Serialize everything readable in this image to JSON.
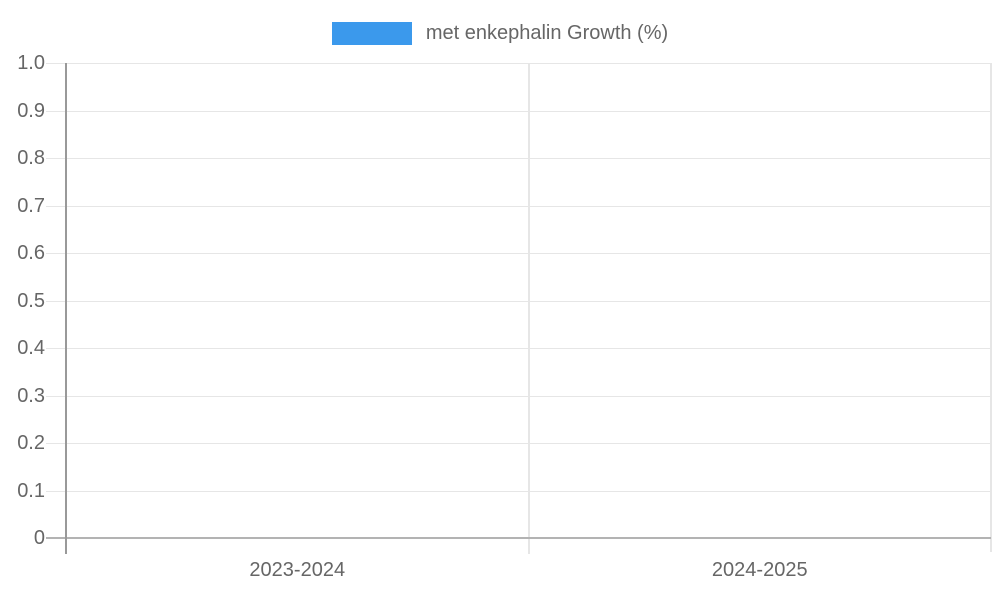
{
  "chart_data": {
    "type": "bar",
    "title": "",
    "legend_position": "top",
    "categories": [
      "2023-2024",
      "2024-2025"
    ],
    "series": [
      {
        "name": "met enkephalin Growth (%)",
        "color": "#3b99ec",
        "values": [
          0,
          0
        ]
      }
    ],
    "ylim": [
      0,
      1
    ],
    "ytick_labels": [
      "1.0",
      "0.9",
      "0.8",
      "0.7",
      "0.6",
      "0.5",
      "0.4",
      "0.3",
      "0.2",
      "0.1",
      "0"
    ],
    "grid": true
  },
  "colors": {
    "legend_swatch": "#3b99ec",
    "grid_line": "#e6e6e6",
    "axis_line": "#999999",
    "zero_line": "#b3b3b3",
    "tick_text": "#666666"
  }
}
